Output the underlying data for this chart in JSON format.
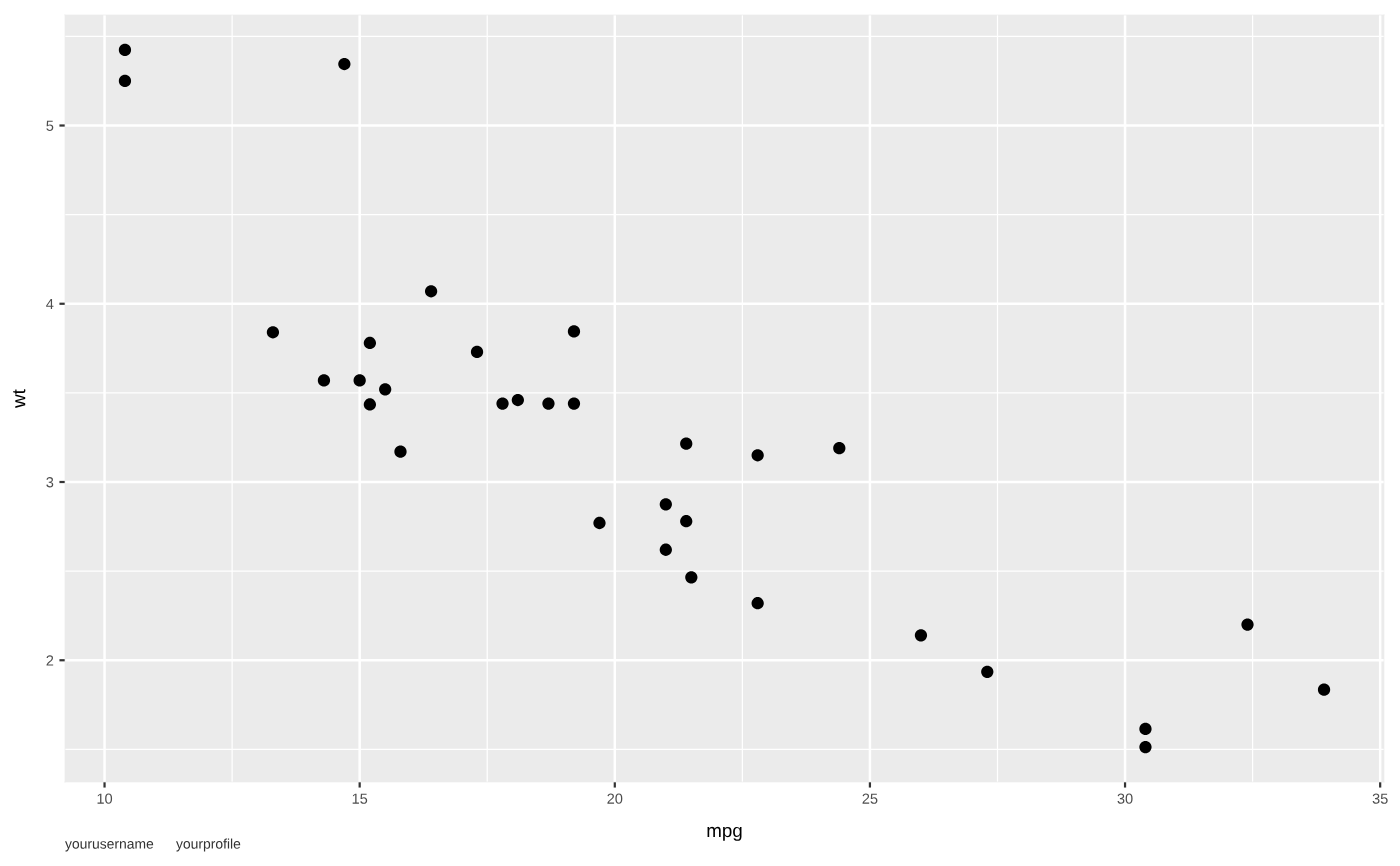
{
  "chart_data": {
    "type": "scatter",
    "xlabel": "mpg",
    "ylabel": "wt",
    "x": [
      21.0,
      21.0,
      22.8,
      21.4,
      18.7,
      18.1,
      14.3,
      24.4,
      22.8,
      19.2,
      17.8,
      16.4,
      17.3,
      15.2,
      10.4,
      10.4,
      14.7,
      32.4,
      30.4,
      33.9,
      21.5,
      15.5,
      15.2,
      13.3,
      19.2,
      27.3,
      26.0,
      30.4,
      15.8,
      19.7,
      15.0,
      21.4
    ],
    "values": [
      2.62,
      2.875,
      2.32,
      3.215,
      3.44,
      3.46,
      3.57,
      3.19,
      3.15,
      3.44,
      3.44,
      4.07,
      3.73,
      3.78,
      5.25,
      5.424,
      5.345,
      2.2,
      1.615,
      1.835,
      2.465,
      3.52,
      3.435,
      3.84,
      3.845,
      1.935,
      2.14,
      1.513,
      3.17,
      2.77,
      3.57,
      2.78
    ],
    "color": "#000000",
    "marker": "circle",
    "xlim": [
      9.225,
      35.075
    ],
    "ylim": [
      1.317,
      5.62
    ],
    "xticks": [
      10,
      {
        "value": 12.5,
        "label": null
      },
      15,
      {
        "value": 17.5,
        "label": null
      },
      20,
      {
        "value": 22.5,
        "label": null
      },
      25,
      {
        "value": 27.5,
        "label": null
      },
      30,
      {
        "value": 32.5,
        "label": null
      },
      35
    ],
    "yticks": [
      {
        "value": 1.5,
        "label": null
      },
      2,
      {
        "value": 2.5,
        "label": null
      },
      3,
      {
        "value": 3.5,
        "label": null
      },
      4,
      {
        "value": 4.5,
        "label": null
      },
      5,
      {
        "value": 5.5,
        "label": null
      }
    ],
    "grid": true,
    "annotations": [
      "yourusername",
      "yourprofile"
    ]
  }
}
